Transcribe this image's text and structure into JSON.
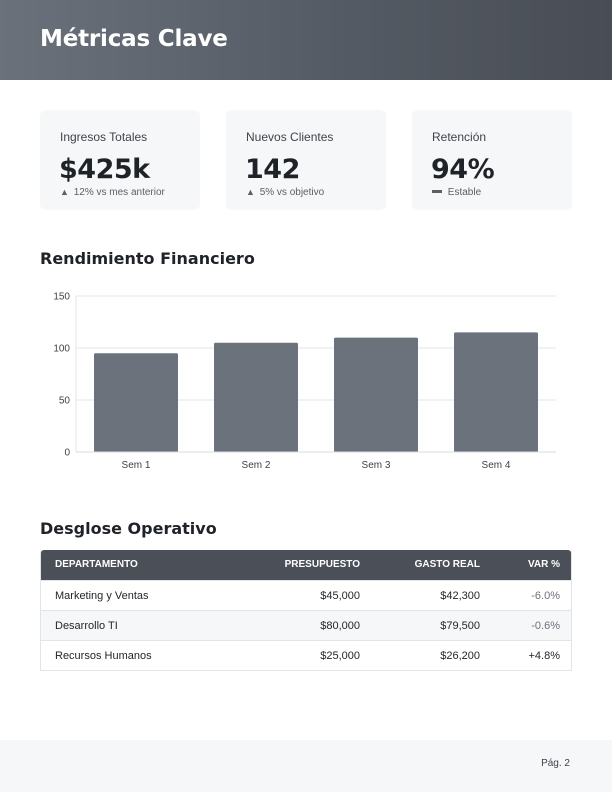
{
  "header": {
    "title": "Métricas Clave"
  },
  "kpis": [
    {
      "label": "Ingresos Totales",
      "value": "$425k",
      "indicator": "▲",
      "note": "12% vs mes anterior"
    },
    {
      "label": "Nuevos Clientes",
      "value": "142",
      "indicator": "▲",
      "note": "5% vs objetivo"
    },
    {
      "label": "Retención",
      "value": "94%",
      "indicator": "—",
      "note": "Estable"
    }
  ],
  "chart_section": {
    "title": "Rendimiento Financiero"
  },
  "chart_data": {
    "type": "bar",
    "categories": [
      "Sem 1",
      "Sem 2",
      "Sem 3",
      "Sem 4"
    ],
    "values": [
      95,
      105,
      110,
      115
    ],
    "ylim": [
      0,
      150
    ],
    "yticks": [
      0,
      50,
      100,
      150
    ],
    "grid": true,
    "bar_color": "#6b727c"
  },
  "table_section": {
    "title": "Desglose Operativo"
  },
  "table": {
    "headers": {
      "dept": "DEPARTAMENTO",
      "budget": "PRESUPUESTO",
      "spend": "GASTO REAL",
      "var": "VAR %"
    },
    "rows": [
      {
        "dept": "Marketing y Ventas",
        "budget": "$45,000",
        "spend": "$42,300",
        "var": "-6.0%"
      },
      {
        "dept": "Desarrollo TI",
        "budget": "$80,000",
        "spend": "$79,500",
        "var": "-0.6%"
      },
      {
        "dept": "Recursos Humanos",
        "budget": "$25,000",
        "spend": "$26,200",
        "var": "+4.8%"
      }
    ]
  },
  "footer": {
    "page": "Pág. 2"
  }
}
